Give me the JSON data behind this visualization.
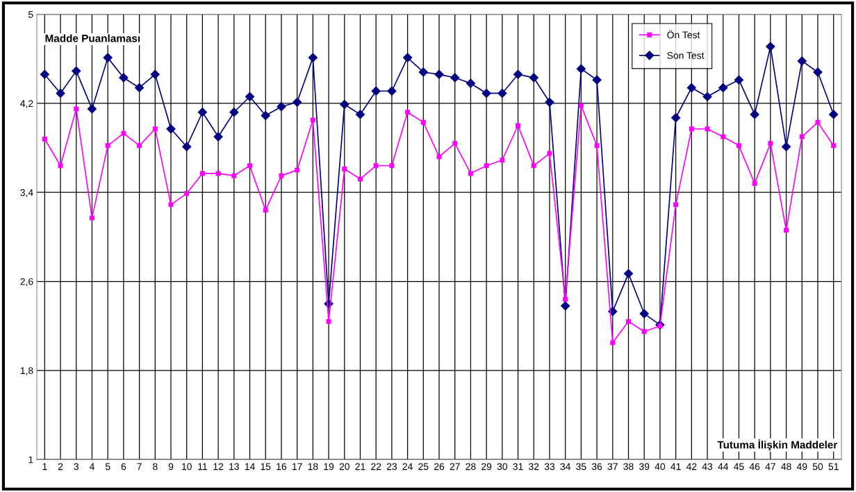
{
  "chart_data": {
    "type": "line",
    "ylabel": "Madde Puanlaması",
    "xlabel": "Tutuma İlişkin Maddeler",
    "categories": [
      "1",
      "2",
      "3",
      "4",
      "5",
      "6",
      "7",
      "8",
      "9",
      "10",
      "11",
      "12",
      "13",
      "14",
      "15",
      "16",
      "17",
      "18",
      "19",
      "20",
      "21",
      "22",
      "23",
      "24",
      "25",
      "26",
      "27",
      "28",
      "29",
      "30",
      "31",
      "32",
      "33",
      "34",
      "35",
      "36",
      "37",
      "38",
      "39",
      "40",
      "41",
      "42",
      "43",
      "44",
      "45",
      "46",
      "47",
      "48",
      "49",
      "50",
      "51"
    ],
    "series": [
      {
        "name": "Ön Test",
        "color": "#ff00ff",
        "marker": "square",
        "values": [
          3.88,
          3.64,
          4.15,
          3.17,
          3.82,
          3.93,
          3.82,
          3.97,
          3.29,
          3.39,
          3.57,
          3.57,
          3.55,
          3.64,
          3.24,
          3.55,
          3.6,
          4.05,
          2.24,
          3.61,
          3.52,
          3.64,
          3.64,
          4.12,
          4.03,
          3.72,
          3.84,
          3.57,
          3.64,
          3.69,
          4.0,
          3.64,
          3.75,
          2.44,
          4.18,
          3.82,
          2.05,
          2.24,
          2.15,
          2.2,
          3.29,
          3.97,
          3.97,
          3.9,
          3.82,
          3.48,
          3.84,
          3.06,
          3.9,
          4.03,
          3.82
        ]
      },
      {
        "name": "Son Test",
        "color": "#000080",
        "marker": "diamond",
        "values": [
          4.46,
          4.29,
          4.49,
          4.15,
          4.61,
          4.43,
          4.34,
          4.46,
          3.97,
          3.81,
          4.12,
          3.9,
          4.12,
          4.26,
          4.09,
          4.17,
          4.21,
          4.61,
          2.4,
          4.19,
          4.1,
          4.31,
          4.31,
          4.61,
          4.48,
          4.46,
          4.43,
          4.38,
          4.29,
          4.29,
          4.46,
          4.43,
          4.21,
          2.38,
          4.51,
          4.41,
          2.33,
          2.67,
          2.31,
          2.21,
          4.07,
          4.34,
          4.26,
          4.34,
          4.41,
          4.1,
          4.71,
          3.81,
          4.58,
          4.48,
          4.1
        ]
      }
    ],
    "ylim": [
      1,
      5
    ],
    "yticks": [
      1,
      {
        "value": 1.8,
        "label": "1,8"
      },
      {
        "value": 2.6,
        "label": "2,6"
      },
      {
        "value": 3.4,
        "label": "3,4"
      },
      {
        "value": 4.2,
        "label": "4,2"
      },
      5
    ],
    "grid": true,
    "legend": "top right",
    "line_style": "solid"
  }
}
